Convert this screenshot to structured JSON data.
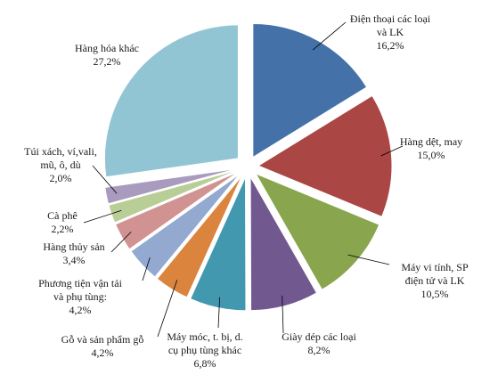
{
  "chart_data": {
    "type": "pie",
    "exploded": true,
    "slices": [
      {
        "lines": [
          "Điện thoại các loại",
          "và LK"
        ],
        "value_label": "16,2%",
        "value": 16.2,
        "color": "#4472A8"
      },
      {
        "lines": [
          "Hàng dệt, may"
        ],
        "value_label": "15,0%",
        "value": 15.0,
        "color": "#AA4644"
      },
      {
        "lines": [
          "Máy vi tính, SP",
          "điện tử và LK"
        ],
        "value_label": "10,5%",
        "value": 10.5,
        "color": "#89A54E"
      },
      {
        "lines": [
          "Giày dép các loại"
        ],
        "value_label": "8,2%",
        "value": 8.2,
        "color": "#71588F"
      },
      {
        "lines": [
          "Máy móc, t. bị, d.",
          "cụ phụ tùng khác"
        ],
        "value_label": "6,8%",
        "value": 6.8,
        "color": "#4198AF"
      },
      {
        "lines": [
          "Gỗ và sản phẩm gỗ"
        ],
        "value_label": "4,2%",
        "value": 4.2,
        "color": "#DB843D"
      },
      {
        "lines": [
          "Phương tiện vận tải",
          "và phụ tùng:"
        ],
        "value_label": "4,2%",
        "value": 4.2,
        "color": "#93A9CF"
      },
      {
        "lines": [
          "Hàng thủy sản"
        ],
        "value_label": "3,4%",
        "value": 3.4,
        "color": "#D19392"
      },
      {
        "lines": [
          "Cà phê"
        ],
        "value_label": "2,2%",
        "value": 2.2,
        "color": "#B9CD96"
      },
      {
        "lines": [
          "Túi xách, ví,vali,",
          "mũ, ô, dù"
        ],
        "value_label": "2,0%",
        "value": 2.0,
        "color": "#A99BBD"
      },
      {
        "lines": [
          "Hàng hóa khác"
        ],
        "value_label": "27,2%",
        "value": 27.2,
        "color": "#92C5D4"
      }
    ]
  }
}
